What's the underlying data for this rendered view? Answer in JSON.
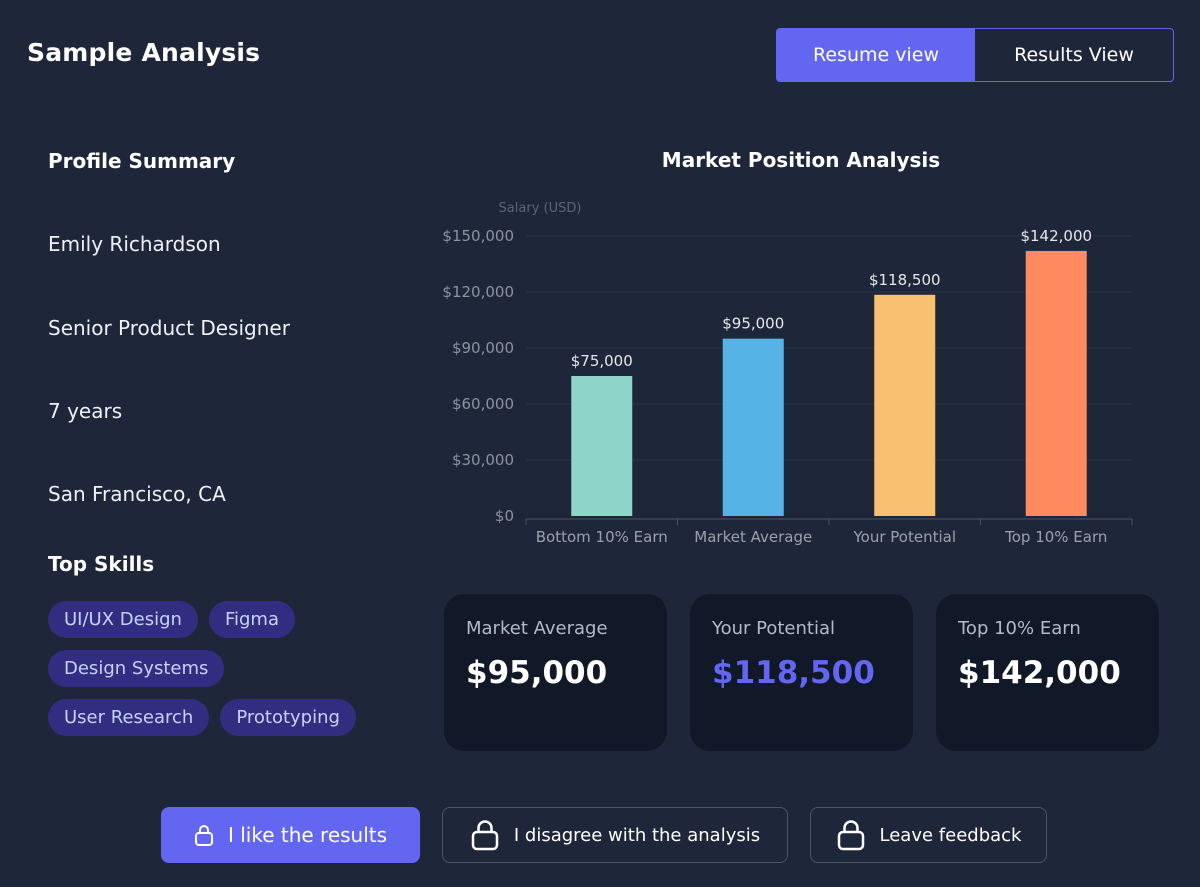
{
  "page": {
    "title": "Sample Analysis"
  },
  "view_toggle": {
    "resume_label": "Resume view",
    "results_label": "Results View"
  },
  "profile": {
    "heading": "Profile Summary",
    "name": "Emily Richardson",
    "role": "Senior Product Designer",
    "experience": "7 years",
    "location": "San Francisco, CA"
  },
  "skills": {
    "heading": "Top Skills",
    "rows": [
      [
        "UI/UX Design",
        "Figma"
      ],
      [
        "Design Systems"
      ],
      [
        "User Research",
        "Prototyping"
      ]
    ]
  },
  "chart_data": {
    "type": "bar",
    "title": "Market Position Analysis",
    "ylabel": "Salary (USD)",
    "categories": [
      "Bottom 10% Earn",
      "Market Average",
      "Your Potential",
      "Top 10% Earn"
    ],
    "values": [
      75000,
      95000,
      118500,
      142000
    ],
    "data_labels": [
      "$75,000",
      "$95,000",
      "$118,500",
      "$142,000"
    ],
    "colors": [
      "#8fd4c8",
      "#56b3e6",
      "#f8c070",
      "#fe8a5e"
    ],
    "ylim": [
      0,
      150000
    ],
    "yticks": [
      0,
      30000,
      60000,
      90000,
      120000,
      150000
    ],
    "ytick_labels": [
      "$0",
      "$30,000",
      "$60,000",
      "$90,000",
      "$120,000",
      "$150,000"
    ],
    "grid": true,
    "legend": "none"
  },
  "stats": [
    {
      "label": "Market Average",
      "value": "$95,000",
      "accent": false
    },
    {
      "label": "Your Potential",
      "value": "$118,500",
      "accent": true
    },
    {
      "label": "Top 10% Earn",
      "value": "$142,000",
      "accent": false
    }
  ],
  "actions": {
    "like_label": "I like the results",
    "disagree_label": "I disagree with the analysis",
    "feedback_label": "Leave feedback",
    "icon": "lock-icon"
  },
  "colors": {
    "background": "#1e2739",
    "accent": "#6366f1",
    "card": "#111827",
    "chip_bg": "#312e81",
    "chip_text": "#c7d2fe"
  }
}
